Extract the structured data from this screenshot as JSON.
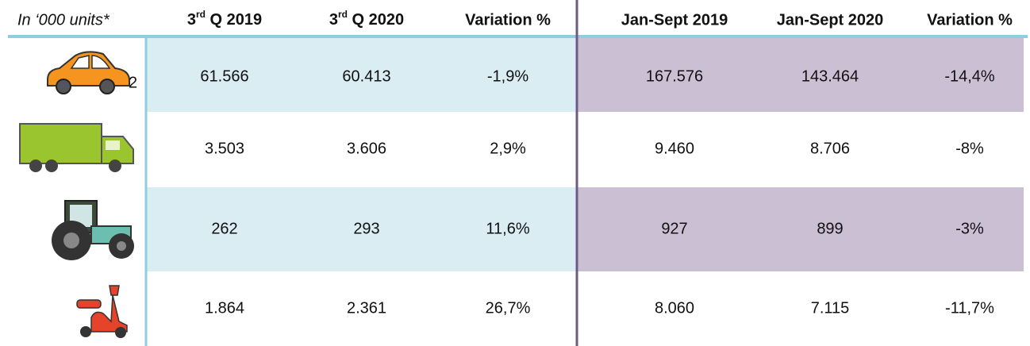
{
  "header": {
    "unit_note": "In ‘000 units*",
    "columns": [
      {
        "lead": "3",
        "sup": "rd",
        "rest": " Q 2019"
      },
      {
        "lead": "3",
        "sup": "rd",
        "rest": " Q 2020"
      },
      {
        "text": "Variation %"
      },
      {
        "text": "Jan-Sept 2019"
      },
      {
        "text": "Jan-Sept 2020"
      },
      {
        "text": "Variation %"
      }
    ]
  },
  "rows": [
    {
      "note": "2",
      "cells": [
        "61.566",
        "60.413",
        "-1,9%",
        "167.576",
        "143.464",
        "-14,4%"
      ]
    },
    {
      "cells": [
        "3.503",
        "3.606",
        "2,9%",
        "9.460",
        "8.706",
        "-8%"
      ]
    },
    {
      "cells": [
        "262",
        "293",
        "11,6%",
        "927",
        "899",
        "-3%"
      ]
    },
    {
      "cells": [
        "1.864",
        "2.361",
        "26,7%",
        "8.060",
        "7.115",
        "-11,7%"
      ]
    }
  ]
}
